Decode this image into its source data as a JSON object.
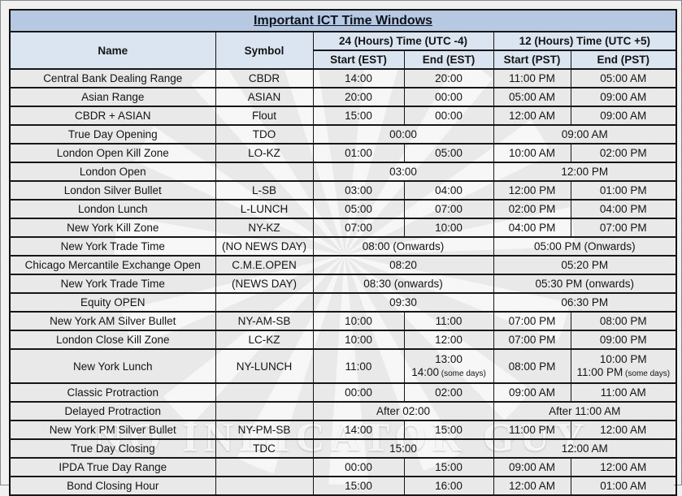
{
  "title": "Important ICT Time Windows",
  "watermark": {
    "text": "NO INDICATOR GUY"
  },
  "colors": {
    "title_bg": "#b7c8e2",
    "header_bg": "#dbe5f1",
    "row_bg": "#e9e9e9",
    "border": "#161616",
    "page_bg": "#f1f1f1"
  },
  "table": {
    "columns": {
      "name": "Name",
      "symbol": "Symbol",
      "group_24": "24 (Hours) Time (UTC -4)",
      "group_12": "12 (Hours) Time (UTC +5)",
      "start_est": "Start (EST)",
      "end_est": "End (EST)",
      "start_pst": "Start (PST)",
      "end_pst": "End (PST)"
    },
    "rows": [
      {
        "cells": [
          {
            "t": "Central Bank Dealing Range"
          },
          {
            "t": "CBDR"
          },
          {
            "t": "14:00"
          },
          {
            "t": "20:00"
          },
          {
            "t": "11:00 PM"
          },
          {
            "t": "05:00 AM"
          }
        ]
      },
      {
        "cells": [
          {
            "t": "Asian Range"
          },
          {
            "t": "ASIAN"
          },
          {
            "t": "20:00"
          },
          {
            "t": "00:00"
          },
          {
            "t": "05:00 AM"
          },
          {
            "t": "09:00 AM"
          }
        ]
      },
      {
        "cells": [
          {
            "t": "CBDR + ASIAN"
          },
          {
            "t": "Flout"
          },
          {
            "t": "15:00"
          },
          {
            "t": "00:00"
          },
          {
            "t": "12:00 AM"
          },
          {
            "t": "09:00 AM"
          }
        ]
      },
      {
        "cells": [
          {
            "t": "True Day Opening"
          },
          {
            "t": "TDO"
          },
          {
            "t": "00:00",
            "span": 2
          },
          {
            "t": "09:00 AM",
            "span": 2
          }
        ]
      },
      {
        "cells": [
          {
            "t": "London Open Kill Zone"
          },
          {
            "t": "LO-KZ"
          },
          {
            "t": "01:00"
          },
          {
            "t": "05:00"
          },
          {
            "t": "10:00 AM"
          },
          {
            "t": "02:00 PM"
          }
        ]
      },
      {
        "cells": [
          {
            "t": "London Open"
          },
          {
            "t": ""
          },
          {
            "t": "03:00",
            "span": 2
          },
          {
            "t": "12:00 PM",
            "span": 2
          }
        ]
      },
      {
        "cells": [
          {
            "t": "London Silver Bullet"
          },
          {
            "t": "L-SB"
          },
          {
            "t": "03:00"
          },
          {
            "t": "04:00"
          },
          {
            "t": "12:00 PM"
          },
          {
            "t": "01:00 PM"
          }
        ]
      },
      {
        "cells": [
          {
            "t": "London Lunch"
          },
          {
            "t": "L-LUNCH"
          },
          {
            "t": "05:00"
          },
          {
            "t": "07:00"
          },
          {
            "t": "02:00 PM"
          },
          {
            "t": "04:00 PM"
          }
        ]
      },
      {
        "cells": [
          {
            "t": "New York Kill Zone"
          },
          {
            "t": "NY-KZ"
          },
          {
            "t": "07:00"
          },
          {
            "t": "10:00"
          },
          {
            "t": "04:00 PM"
          },
          {
            "t": "07:00 PM"
          }
        ]
      },
      {
        "cells": [
          {
            "t": "New York Trade Time"
          },
          {
            "t": "(NO NEWS DAY)"
          },
          {
            "t": "08:00 (Onwards)",
            "span": 2
          },
          {
            "t": "05:00 PM (Onwards)",
            "span": 2
          }
        ]
      },
      {
        "cells": [
          {
            "t": "Chicago Mercantile Exchange Open"
          },
          {
            "t": "C.M.E.OPEN"
          },
          {
            "t": "08:20",
            "span": 2
          },
          {
            "t": "05:20 PM",
            "span": 2
          }
        ]
      },
      {
        "cells": [
          {
            "t": "New York Trade Time"
          },
          {
            "t": "(NEWS DAY)"
          },
          {
            "t": "08:30 (onwards)",
            "span": 2
          },
          {
            "t": "05:30 PM (onwards)",
            "span": 2
          }
        ]
      },
      {
        "cells": [
          {
            "t": "Equity OPEN"
          },
          {
            "t": ""
          },
          {
            "t": "09:30",
            "span": 2
          },
          {
            "t": "06:30 PM",
            "span": 2
          }
        ]
      },
      {
        "cells": [
          {
            "t": "New York AM Silver Bullet"
          },
          {
            "t": "NY-AM-SB"
          },
          {
            "t": "10:00"
          },
          {
            "t": "11:00"
          },
          {
            "t": "07:00 PM"
          },
          {
            "t": "08:00 PM"
          }
        ]
      },
      {
        "cells": [
          {
            "t": "London Close Kill Zone"
          },
          {
            "t": "LC-KZ"
          },
          {
            "t": "10:00"
          },
          {
            "t": "12:00"
          },
          {
            "t": "07:00 PM"
          },
          {
            "t": "09:00 PM"
          }
        ]
      },
      {
        "h": 42,
        "cells": [
          {
            "t": "New York Lunch"
          },
          {
            "t": "NY-LUNCH"
          },
          {
            "t": "11:00"
          },
          {
            "lines": [
              {
                "t": "13:00"
              },
              {
                "t": "14:00",
                "s": "(some days)"
              }
            ]
          },
          {
            "t": "08:00 PM"
          },
          {
            "lines": [
              {
                "t": "10:00 PM"
              },
              {
                "t": "11:00 PM",
                "s": "(some days)"
              }
            ]
          }
        ]
      },
      {
        "cells": [
          {
            "t": "Classic Protraction"
          },
          {
            "t": ""
          },
          {
            "t": "00:00"
          },
          {
            "t": "02:00"
          },
          {
            "t": "09:00 AM"
          },
          {
            "t": "11:00 AM"
          }
        ]
      },
      {
        "cells": [
          {
            "t": "Delayed Protraction"
          },
          {
            "t": ""
          },
          {
            "t": "After 02:00",
            "span": 2
          },
          {
            "t": "After 11:00 AM",
            "span": 2
          }
        ]
      },
      {
        "cells": [
          {
            "t": "New York PM Silver Bullet"
          },
          {
            "t": "NY-PM-SB"
          },
          {
            "t": "14:00"
          },
          {
            "t": "15:00"
          },
          {
            "t": "11:00 PM"
          },
          {
            "t": "12:00 AM"
          }
        ]
      },
      {
        "cells": [
          {
            "t": "True Day Closing"
          },
          {
            "t": "TDC"
          },
          {
            "t": "15:00",
            "span": 2
          },
          {
            "t": "12:00 AM",
            "span": 2
          }
        ]
      },
      {
        "cells": [
          {
            "t": "IPDA True Day Range"
          },
          {
            "t": ""
          },
          {
            "t": "00:00"
          },
          {
            "t": "15:00"
          },
          {
            "t": "09:00 AM"
          },
          {
            "t": "12:00 AM"
          }
        ]
      },
      {
        "cells": [
          {
            "t": "Bond Closing Hour"
          },
          {
            "t": ""
          },
          {
            "t": "15:00"
          },
          {
            "t": "16:00"
          },
          {
            "t": "12:00 AM"
          },
          {
            "t": "01:00 AM"
          }
        ]
      }
    ]
  }
}
